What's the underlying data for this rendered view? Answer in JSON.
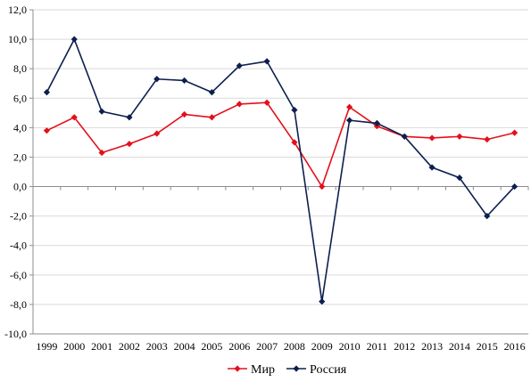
{
  "chart_data": {
    "type": "line",
    "title": "",
    "xlabel": "",
    "ylabel": "",
    "ylim": [
      -10,
      12
    ],
    "ytick_step": 2,
    "ytick_labels": [
      "-10,0",
      "-8,0",
      "-6,0",
      "-4,0",
      "-2,0",
      "0,0",
      "2,0",
      "4,0",
      "6,0",
      "8,0",
      "10,0",
      "12,0"
    ],
    "categories": [
      "1999",
      "2000",
      "2001",
      "2002",
      "2003",
      "2004",
      "2005",
      "2006",
      "2007",
      "2008",
      "2009",
      "2010",
      "2011",
      "2012",
      "2013",
      "2014",
      "2015",
      "2016"
    ],
    "grid": "horizontal",
    "legend_position": "bottom",
    "series": [
      {
        "name": "Мир",
        "color": "#e3101b",
        "marker": "diamond",
        "values": [
          3.8,
          4.7,
          2.3,
          2.9,
          3.6,
          4.9,
          4.7,
          5.6,
          5.7,
          3.0,
          0.0,
          5.4,
          4.1,
          3.4,
          3.3,
          3.4,
          3.2,
          3.65
        ]
      },
      {
        "name": "Россия",
        "color": "#0d1f4f",
        "marker": "diamond",
        "values": [
          6.4,
          10.0,
          5.1,
          4.7,
          7.3,
          7.2,
          6.4,
          8.2,
          8.5,
          5.2,
          -7.8,
          4.5,
          4.3,
          3.4,
          1.3,
          0.6,
          -2.0,
          0.0
        ]
      }
    ]
  }
}
